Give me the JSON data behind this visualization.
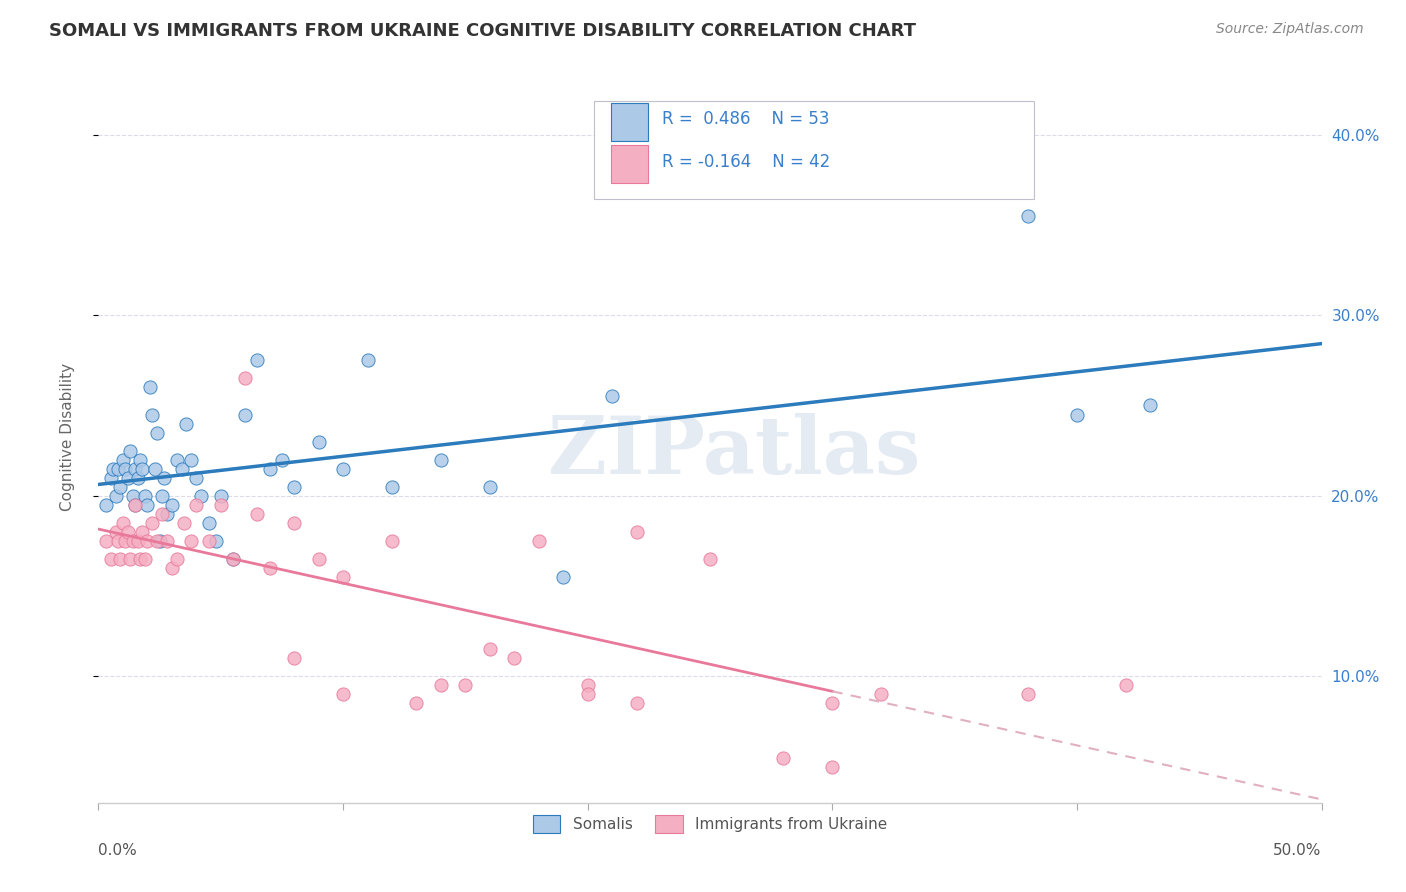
{
  "title": "SOMALI VS IMMIGRANTS FROM UKRAINE COGNITIVE DISABILITY CORRELATION CHART",
  "source": "Source: ZipAtlas.com",
  "ylabel": "Cognitive Disability",
  "watermark": "ZIPatlas",
  "legend_somali_R": "0.486",
  "legend_somali_N": "53",
  "legend_ukraine_R": "-0.164",
  "legend_ukraine_N": "42",
  "somali_color": "#adc9e8",
  "ukraine_color": "#f5afc3",
  "somali_line_color": "#2b7bbd",
  "ukraine_line_color": "#e8799a",
  "ukraine_dash_color": "#e0b0c0",
  "right_axis_color": "#3a7fcc",
  "ytick_labels": [
    "10.0%",
    "20.0%",
    "30.0%",
    "40.0%"
  ],
  "ytick_values": [
    0.1,
    0.2,
    0.3,
    0.4
  ],
  "xlim": [
    0.0,
    0.5
  ],
  "ylim": [
    0.03,
    0.435
  ],
  "somali_x": [
    0.003,
    0.005,
    0.006,
    0.007,
    0.008,
    0.009,
    0.01,
    0.011,
    0.012,
    0.013,
    0.014,
    0.015,
    0.015,
    0.016,
    0.017,
    0.018,
    0.019,
    0.02,
    0.021,
    0.022,
    0.023,
    0.024,
    0.025,
    0.026,
    0.027,
    0.028,
    0.03,
    0.032,
    0.034,
    0.036,
    0.038,
    0.04,
    0.042,
    0.045,
    0.048,
    0.05,
    0.055,
    0.06,
    0.065,
    0.07,
    0.075,
    0.08,
    0.09,
    0.1,
    0.11,
    0.12,
    0.14,
    0.16,
    0.19,
    0.21,
    0.38,
    0.4,
    0.43
  ],
  "somali_y": [
    0.195,
    0.21,
    0.215,
    0.2,
    0.215,
    0.205,
    0.22,
    0.215,
    0.21,
    0.225,
    0.2,
    0.195,
    0.215,
    0.21,
    0.22,
    0.215,
    0.2,
    0.195,
    0.26,
    0.245,
    0.215,
    0.235,
    0.175,
    0.2,
    0.21,
    0.19,
    0.195,
    0.22,
    0.215,
    0.24,
    0.22,
    0.21,
    0.2,
    0.185,
    0.175,
    0.2,
    0.165,
    0.245,
    0.275,
    0.215,
    0.22,
    0.205,
    0.23,
    0.215,
    0.275,
    0.205,
    0.22,
    0.205,
    0.155,
    0.255,
    0.355,
    0.245,
    0.25
  ],
  "ukraine_x": [
    0.003,
    0.005,
    0.007,
    0.008,
    0.009,
    0.01,
    0.011,
    0.012,
    0.013,
    0.014,
    0.015,
    0.016,
    0.017,
    0.018,
    0.019,
    0.02,
    0.022,
    0.024,
    0.026,
    0.028,
    0.03,
    0.032,
    0.035,
    0.038,
    0.04,
    0.045,
    0.05,
    0.055,
    0.06,
    0.065,
    0.07,
    0.08,
    0.09,
    0.1,
    0.12,
    0.14,
    0.16,
    0.18,
    0.2,
    0.22,
    0.25,
    0.3
  ],
  "ukraine_y": [
    0.175,
    0.165,
    0.18,
    0.175,
    0.165,
    0.185,
    0.175,
    0.18,
    0.165,
    0.175,
    0.195,
    0.175,
    0.165,
    0.18,
    0.165,
    0.175,
    0.185,
    0.175,
    0.19,
    0.175,
    0.16,
    0.165,
    0.185,
    0.175,
    0.195,
    0.175,
    0.195,
    0.165,
    0.265,
    0.19,
    0.16,
    0.185,
    0.165,
    0.155,
    0.175,
    0.095,
    0.115,
    0.175,
    0.095,
    0.18,
    0.165,
    0.085
  ],
  "ukraine_low_x": [
    0.08,
    0.1,
    0.13,
    0.15,
    0.17,
    0.2,
    0.22,
    0.28,
    0.3,
    0.32,
    0.38,
    0.42
  ],
  "ukraine_low_y": [
    0.11,
    0.09,
    0.085,
    0.095,
    0.11,
    0.09,
    0.085,
    0.055,
    0.05,
    0.09,
    0.09,
    0.095
  ],
  "background_color": "#ffffff",
  "grid_color": "#dcdce8"
}
